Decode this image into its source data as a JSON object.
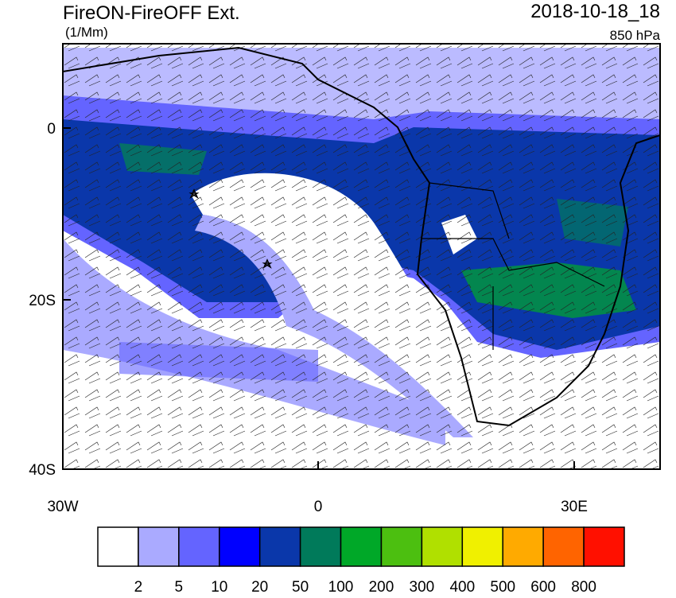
{
  "title": "FireON-FireOFF Ext.",
  "units": "(1/Mm)",
  "date": "2018-10-18_18",
  "level": "850 hPa",
  "lat_labels": [
    "0",
    "20S",
    "40S"
  ],
  "lon_labels": [
    "30W",
    "0",
    "30E"
  ],
  "colorbar": {
    "colors": [
      "#ffffff",
      "#aaaaff",
      "#6464ff",
      "#0000ff",
      "#0a37aa",
      "#007a5a",
      "#00a828",
      "#4cbf10",
      "#b0e000",
      "#f0f000",
      "#ffaa00",
      "#ff6400",
      "#ff1000"
    ],
    "labels": [
      "2",
      "5",
      "10",
      "20",
      "50",
      "100",
      "200",
      "300",
      "400",
      "500",
      "600",
      "800"
    ]
  }
}
